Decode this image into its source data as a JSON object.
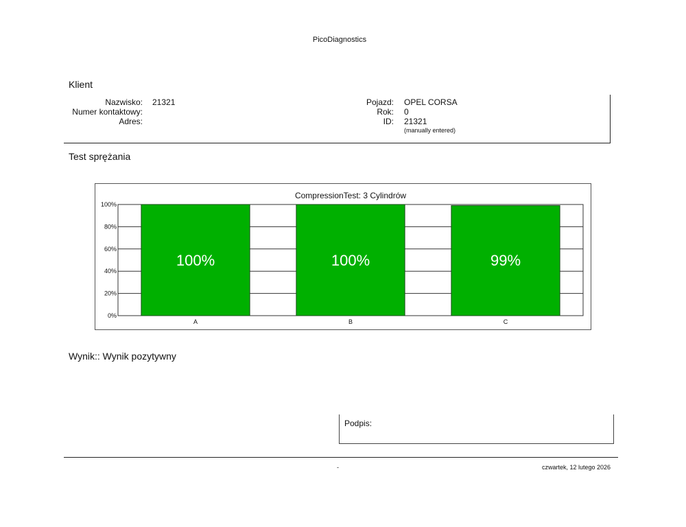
{
  "header": {
    "app_name": "PicoDiagnostics"
  },
  "client": {
    "section_title": "Klient",
    "surname_label": "Nazwisko:",
    "surname_value": "21321",
    "contact_label": "Numer kontaktowy:",
    "address_label": "Adres:",
    "vehicle_label": "Pojazd:",
    "vehicle_value": "OPEL CORSA",
    "year_label": "Rok:",
    "year_value": "0",
    "id_label": "ID:",
    "id_value": "21321",
    "id_note": "(manually entered)"
  },
  "test": {
    "section_title": "Test sprężania"
  },
  "result": {
    "text": "Wynik:: Wynik pozytywny"
  },
  "signature": {
    "label": "Podpis:"
  },
  "footer": {
    "center": "-",
    "date": "czwartek, 12 lutego 2026"
  },
  "chart_data": {
    "type": "bar",
    "title": "CompressionTest: 3 Cylindrów",
    "categories": [
      "A",
      "B",
      "C"
    ],
    "values": [
      100,
      100,
      99
    ],
    "value_labels": [
      "100%",
      "100%",
      "99%"
    ],
    "yticks": [
      "0%",
      "20%",
      "40%",
      "60%",
      "80%",
      "100%"
    ],
    "ylim": [
      0,
      100
    ],
    "grid": true,
    "bar_color": "#00b000"
  }
}
